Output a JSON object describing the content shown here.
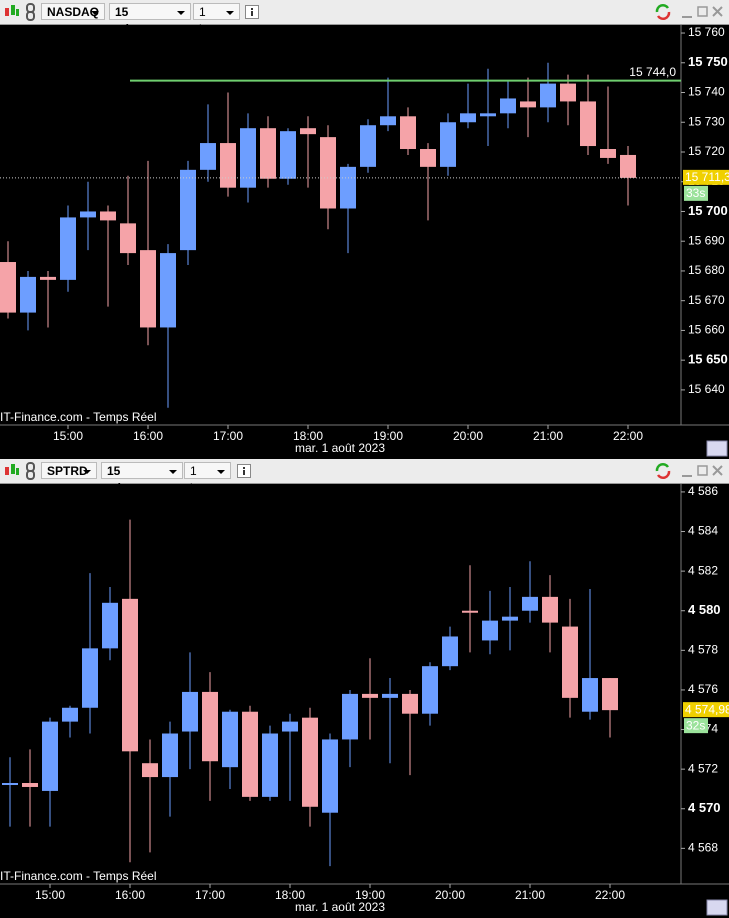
{
  "chart_data": [
    {
      "type": "candlestick",
      "symbol": "NASDAQ",
      "interval": "15 minutes",
      "range": "1 jour",
      "source": "IT-Finance.com - Temps Réel",
      "xlabel": "mar. 1 août 2023",
      "categories": [
        null,
        null,
        null,
        "15:00",
        null,
        null,
        null,
        "16:00",
        null,
        null,
        null,
        "17:00",
        null,
        null,
        null,
        "18:00",
        null,
        null,
        null,
        "19:00",
        null,
        null,
        null,
        "20:00",
        null,
        null,
        null,
        "21:00",
        null,
        null,
        null,
        "22:00"
      ],
      "open": [
        15683,
        15666,
        15678,
        15677,
        15698,
        15700,
        15696,
        15687,
        15661,
        15687,
        15714,
        15723,
        15708,
        15728,
        15711,
        15728,
        15725,
        15701,
        15715,
        15729,
        15732,
        15721,
        15715,
        15730,
        15732,
        15733,
        15737,
        15735,
        15743,
        15737,
        15721,
        15719
      ],
      "high": [
        15690,
        15680,
        15680,
        15702,
        15710,
        15702,
        15712,
        15717,
        15689,
        15717,
        15736,
        15740,
        15733,
        15732,
        15728,
        15732,
        15729,
        15716,
        15731,
        15745,
        15735,
        15723,
        15733,
        15743,
        15748,
        15744,
        15745,
        15750,
        15746,
        15746,
        15742,
        15722
      ],
      "low": [
        15664,
        15660,
        15661,
        15673,
        15687,
        15668,
        15682,
        15655,
        15634,
        15682,
        15710,
        15705,
        15703,
        15708,
        15709,
        15708,
        15694,
        15686,
        15713,
        15727,
        15719,
        15697,
        15712,
        15728,
        15722,
        15728,
        15725,
        15730,
        15729,
        15719,
        15716,
        15702
      ],
      "close": [
        15666,
        15678,
        15677,
        15698,
        15700,
        15697,
        15686,
        15661,
        15686,
        15714,
        15723,
        15708,
        15728,
        15711,
        15727,
        15726,
        15701,
        15715,
        15729,
        15732,
        15721,
        15715,
        15730,
        15733,
        15733,
        15738,
        15735,
        15743,
        15737,
        15722,
        15718,
        15711.3
      ],
      "up_color": "#6d9eff",
      "down_color": "#f5a3a8",
      "ylim": [
        15628.2,
        15762.7
      ],
      "yticks": [
        {
          "value": 15760,
          "label": "15 760"
        },
        {
          "value": 15750,
          "label": "15 750"
        },
        {
          "value": 15740,
          "label": "15 740"
        },
        {
          "value": 15730,
          "label": "15 730"
        },
        {
          "value": 15720,
          "label": "15 720"
        },
        {
          "value": 15710,
          "label": "15 710"
        },
        {
          "value": 15700,
          "label": "15 700"
        },
        {
          "value": 15690,
          "label": "15 690"
        },
        {
          "value": 15680,
          "label": "15 680"
        },
        {
          "value": 15670,
          "label": "15 670"
        },
        {
          "value": 15660,
          "label": "15 660"
        },
        {
          "value": 15650,
          "label": "15 650"
        },
        {
          "value": 15640,
          "label": "15 640"
        }
      ],
      "major_step": 50,
      "last": {
        "value": 15711.3,
        "label": "15 711,3"
      },
      "countdown": "33s",
      "price_line": true,
      "level": {
        "value": 15744.0,
        "label": "15 744,0",
        "color": "#6fcf6f"
      }
    },
    {
      "type": "candlestick",
      "symbol": "SPTRD",
      "interval": "15 minutes",
      "range": "1 jour",
      "source": "IT-Finance.com - Temps Réel",
      "xlabel": "mar. 1 août 2023",
      "categories": [
        null,
        null,
        "15:00",
        null,
        null,
        null,
        "16:00",
        null,
        null,
        null,
        "17:00",
        null,
        null,
        null,
        "18:00",
        null,
        null,
        null,
        "19:00",
        null,
        null,
        null,
        "20:00",
        null,
        null,
        null,
        "21:00",
        null,
        null,
        null,
        "22:00"
      ],
      "open": [
        4571.2,
        4571.3,
        4570.9,
        4574.4,
        4575.1,
        4578.1,
        4580.6,
        4572.3,
        4571.6,
        4573.9,
        4575.9,
        4572.1,
        4574.9,
        4570.6,
        4573.9,
        4574.6,
        4569.8,
        4573.5,
        4575.8,
        4575.6,
        4575.8,
        4574.8,
        4577.2,
        4580.0,
        4578.5,
        4579.5,
        4580.0,
        4580.7,
        4579.2,
        4574.9,
        4576.6
      ],
      "high": [
        4572.6,
        4573.0,
        4574.6,
        4575.2,
        4581.9,
        4581.2,
        4584.6,
        4573.5,
        4574.4,
        4577.9,
        4576.9,
        4575.0,
        4575.2,
        4574.2,
        4574.8,
        4575.1,
        4573.8,
        4576.0,
        4577.6,
        4576.6,
        4576.0,
        4577.4,
        4579.2,
        4582.3,
        4581.0,
        4581.2,
        4582.5,
        4581.8,
        4580.6,
        4581.1,
        4576.6
      ],
      "low": [
        4569.1,
        4569.1,
        4569.1,
        4573.6,
        4573.8,
        4577.5,
        4567.3,
        4567.8,
        4569.6,
        4572.0,
        4570.4,
        4571.0,
        4570.4,
        4570.4,
        4570.4,
        4569.1,
        4567.1,
        4572.1,
        4573.5,
        4572.3,
        4571.7,
        4574.2,
        4577.0,
        4577.9,
        4577.8,
        4578.0,
        4579.4,
        4577.9,
        4574.6,
        4574.5,
        4573.6
      ],
      "close": [
        4571.3,
        4571.1,
        4574.4,
        4575.1,
        4578.1,
        4580.4,
        4572.9,
        4571.6,
        4573.8,
        4575.9,
        4572.4,
        4574.9,
        4570.6,
        4573.8,
        4574.4,
        4570.1,
        4573.5,
        4575.8,
        4575.6,
        4575.8,
        4574.8,
        4577.2,
        4578.7,
        4579.9,
        4579.5,
        4579.7,
        4580.7,
        4579.4,
        4575.6,
        4576.6,
        4574.98
      ],
      "up_color": "#6d9eff",
      "down_color": "#f5a3a8",
      "ylim": [
        4566.2,
        4586.4
      ],
      "yticks": [
        {
          "value": 4586,
          "label": "4 586"
        },
        {
          "value": 4584,
          "label": "4 584"
        },
        {
          "value": 4582,
          "label": "4 582"
        },
        {
          "value": 4580,
          "label": "4 580"
        },
        {
          "value": 4578,
          "label": "4 578"
        },
        {
          "value": 4576,
          "label": "4 576"
        },
        {
          "value": 4574,
          "label": "4 574"
        },
        {
          "value": 4572,
          "label": "4 572"
        },
        {
          "value": 4570,
          "label": "4 570"
        },
        {
          "value": 4568,
          "label": "4 568"
        }
      ],
      "major_step": 10,
      "last": {
        "value": 4574.98,
        "label": "4 574,98"
      },
      "countdown": "32s",
      "price_line": false
    }
  ]
}
